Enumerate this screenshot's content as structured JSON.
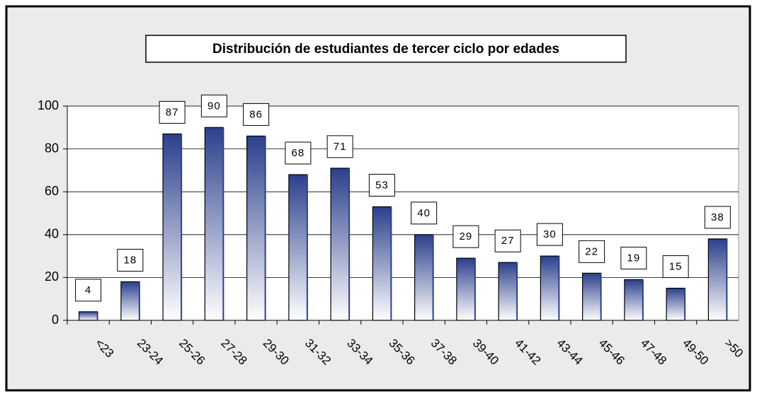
{
  "chart_data": {
    "type": "bar",
    "title": "Distribución de estudiantes de tercer ciclo por edades",
    "categories": [
      "<23",
      "23-24",
      "25-26",
      "27-28",
      "29-30",
      "31-32",
      "33-34",
      "35-36",
      "37-38",
      "39-40",
      "41-42",
      "43-44",
      "45-46",
      "47-48",
      "49-50",
      ">50"
    ],
    "values": [
      4,
      18,
      87,
      90,
      86,
      68,
      71,
      53,
      40,
      29,
      27,
      30,
      22,
      19,
      15,
      38
    ],
    "color": "#2b3f8c",
    "ylim": [
      0,
      100
    ],
    "yticks": [
      0,
      20,
      40,
      60,
      80,
      100
    ],
    "grid": true
  }
}
